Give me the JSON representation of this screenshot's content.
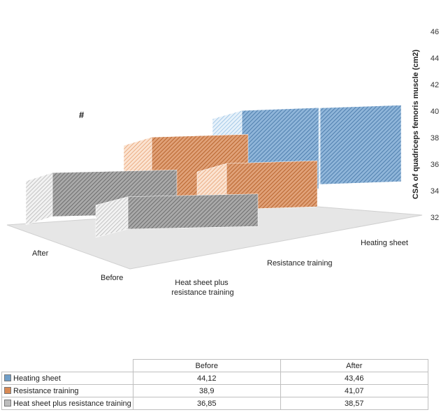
{
  "chart_data": {
    "type": "bar-3d",
    "title": "",
    "depth_categories": [
      "Heating sheet",
      "Resistance training",
      "Heat sheet plus resistance training"
    ],
    "categories": [
      "Before",
      "After"
    ],
    "series": [
      {
        "name": "Heating sheet",
        "values": [
          44.12,
          43.46
        ]
      },
      {
        "name": "Resistance training",
        "values": [
          38.9,
          41.07
        ]
      },
      {
        "name": "Heat sheet plus resistance training",
        "values": [
          36.85,
          38.57
        ]
      }
    ],
    "ylabel": "CSA of quadriceps femoris muscle (cm2)",
    "ylim": [
      32,
      46
    ],
    "yticks": [
      32,
      34,
      36,
      38,
      40,
      42,
      44,
      46
    ],
    "annotation": "#",
    "colors": {
      "Heating sheet": "#6f9ec8",
      "Resistance training": "#d98a54",
      "Heat sheet plus resistance training": "#8f8f8f"
    }
  },
  "table": {
    "columns": [
      "Before",
      "After"
    ],
    "rows": [
      {
        "series": "Heating sheet",
        "before": "44,12",
        "after": "43,46"
      },
      {
        "series": "Resistance training",
        "before": "38,9",
        "after": "41,07"
      },
      {
        "series": "Heat sheet plus resistance training",
        "before": "36,85",
        "after": "38,57"
      }
    ]
  }
}
